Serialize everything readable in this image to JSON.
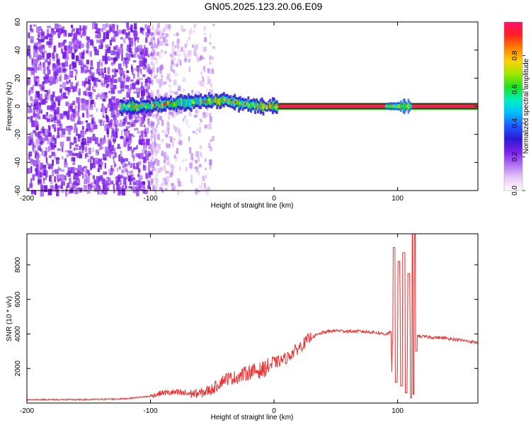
{
  "title": "GN05.2025.123.20.06.E09",
  "chart_data": [
    {
      "type": "heatmap",
      "xlabel": "Height of straight line (km)",
      "ylabel": "Frequency (Hz)",
      "xlim": [
        -200,
        165
      ],
      "ylim": [
        -60,
        60
      ],
      "x_ticks": [
        -200,
        -100,
        0,
        100
      ],
      "x_tick_labels": [
        "-200",
        "-100",
        "0",
        "100"
      ],
      "y_ticks": [
        60,
        40,
        20,
        0,
        -20,
        -40,
        -60
      ],
      "y_tick_labels": [
        "60",
        "40",
        "20",
        "0",
        "-20",
        "-40",
        "-60"
      ],
      "grid": false,
      "colorbar": {
        "label": "Normalized spectral amplitude",
        "range": [
          0,
          1
        ],
        "ticks": [
          0.0,
          0.2,
          0.4,
          0.6,
          0.8
        ],
        "tick_labels": [
          "0.0",
          "0.2",
          "0.4",
          "0.6",
          "0.8"
        ],
        "colormap": [
          "#ffffff",
          "#e8c8f8",
          "#b070f0",
          "#7a1ee8",
          "#2a1ad8",
          "#1e5cff",
          "#00c0ff",
          "#00f0c0",
          "#20e020",
          "#a0e800",
          "#ffd000",
          "#ff8000",
          "#ff2020",
          "#ff1070"
        ]
      },
      "features": {
        "noise_region_x": [
          -200,
          -100
        ],
        "fading_noise_x": [
          -100,
          -50
        ],
        "signal_start_x": -125,
        "signal_band_x": [
          -125,
          165
        ],
        "strong_line_x": [
          0,
          165
        ],
        "strong_line_freq_hz": 0,
        "green_band_hz": 2.5,
        "burst_x": [
          90,
          110
        ],
        "path": [
          {
            "x": -125,
            "f": 0
          },
          {
            "x": -110,
            "f": 0
          },
          {
            "x": -95,
            "f": 1
          },
          {
            "x": -80,
            "f": 2
          },
          {
            "x": -65,
            "f": 3
          },
          {
            "x": -50,
            "f": 4
          },
          {
            "x": -40,
            "f": 4
          },
          {
            "x": -30,
            "f": 2
          },
          {
            "x": -20,
            "f": 1
          },
          {
            "x": -10,
            "f": 0
          },
          {
            "x": 0,
            "f": 0
          }
        ]
      }
    },
    {
      "type": "line",
      "xlabel": "Height of straight line (km)",
      "ylabel": "SNR (10 * v/v)",
      "xlim": [
        -200,
        165
      ],
      "ylim": [
        0,
        9800
      ],
      "x_ticks": [
        -200,
        -100,
        0,
        100
      ],
      "x_tick_labels": [
        "-200",
        "-100",
        "0",
        "100"
      ],
      "y_ticks": [
        2000,
        4000,
        6000,
        8000
      ],
      "y_tick_labels": [
        "2000",
        "4000",
        "6000",
        "8000"
      ],
      "grid": false,
      "series": [
        {
          "color": "#ee3030",
          "x": [
            -200,
            -150,
            -120,
            -100,
            -90,
            -80,
            -70,
            -60,
            -50,
            -40,
            -30,
            -20,
            -10,
            0,
            10,
            20,
            30,
            40,
            50,
            60,
            70,
            80,
            90,
            95,
            100,
            105,
            110,
            113,
            115,
            120,
            130,
            140,
            150,
            165
          ],
          "y": [
            200,
            200,
            250,
            400,
            600,
            600,
            550,
            550,
            800,
            1400,
            1500,
            1800,
            1900,
            2300,
            2600,
            3200,
            3800,
            4100,
            4200,
            4150,
            4150,
            4100,
            4000,
            4100,
            4200,
            3900,
            3300,
            3600,
            3900,
            3850,
            3800,
            3750,
            3650,
            3500
          ]
        }
      ],
      "spikes": [
        {
          "x": 97,
          "y": 9000
        },
        {
          "x": 99,
          "y": 1200
        },
        {
          "x": 101,
          "y": 8200
        },
        {
          "x": 103,
          "y": 1000
        },
        {
          "x": 105,
          "y": 8700
        },
        {
          "x": 107,
          "y": 600
        },
        {
          "x": 109,
          "y": 7500
        },
        {
          "x": 111,
          "y": 300
        },
        {
          "x": 112,
          "y": 9800
        },
        {
          "x": 113,
          "y": 500
        },
        {
          "x": 114,
          "y": 9800
        },
        {
          "x": 115,
          "y": 3000
        }
      ]
    }
  ]
}
